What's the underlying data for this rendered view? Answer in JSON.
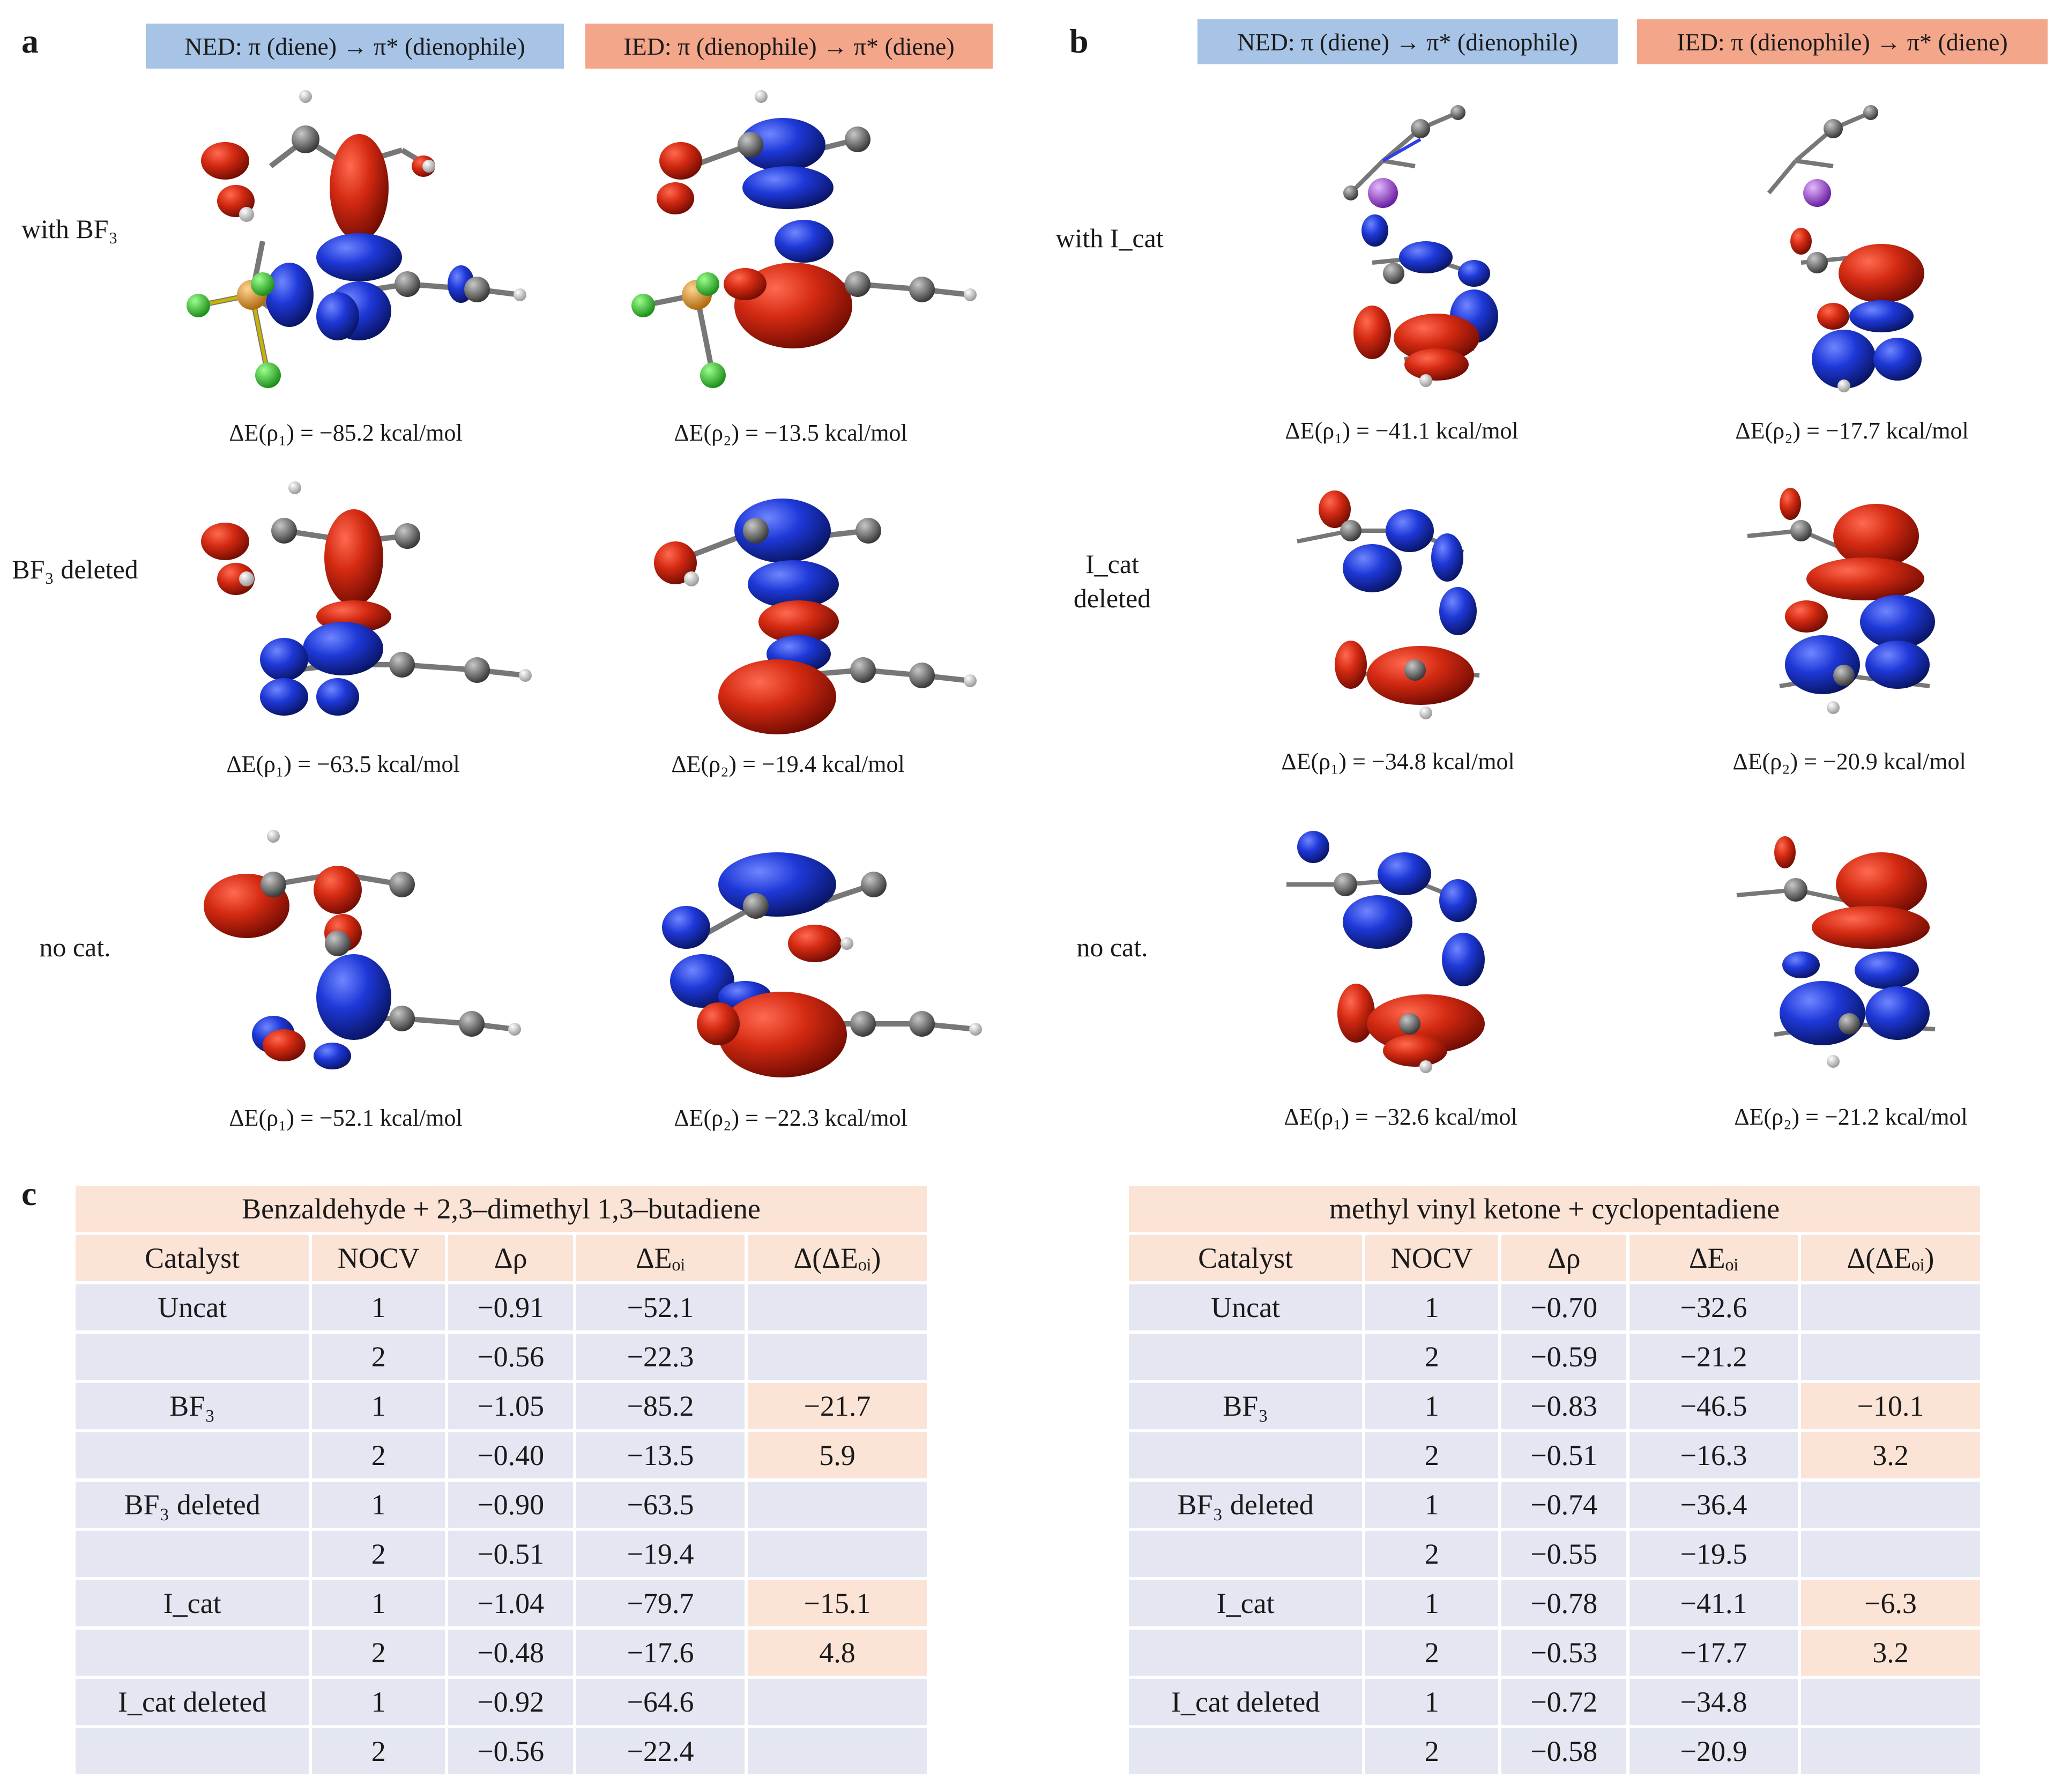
{
  "panels": {
    "a": "a",
    "b": "b",
    "c": "c"
  },
  "headers": {
    "ned": "NED: π (diene) → π* (dienophile)",
    "ied": "IED: π (dienophile) → π* (diene)"
  },
  "panel_a": {
    "rows": [
      "with BF₃",
      "BF₃ deleted",
      "no cat."
    ],
    "energies": [
      [
        "ΔE(ρ₁) = −85.2 kcal/mol",
        "ΔE(ρ₂) = −13.5 kcal/mol"
      ],
      [
        "ΔE(ρ₁) = −63.5 kcal/mol",
        "ΔE(ρ₂) = −19.4 kcal/mol"
      ],
      [
        "ΔE(ρ₁) = −52.1 kcal/mol",
        "ΔE(ρ₂) = −22.3 kcal/mol"
      ]
    ]
  },
  "panel_b": {
    "rows": [
      "with I_cat",
      "I_cat deleted",
      "no cat."
    ],
    "energies": [
      [
        "ΔE(ρ₁) = −41.1 kcal/mol",
        "ΔE(ρ₂) = −17.7 kcal/mol"
      ],
      [
        "ΔE(ρ₁) = −34.8 kcal/mol",
        "ΔE(ρ₂) = −20.9 kcal/mol"
      ],
      [
        "ΔE(ρ₁) = −32.6 kcal/mol",
        "ΔE(ρ₂) = −21.2 kcal/mol"
      ]
    ]
  },
  "tables": [
    {
      "title": "Benzaldehyde + 2,3–dimethyl 1,3–butadiene",
      "columns": [
        "Catalyst",
        "NOCV",
        "Δρ",
        "ΔEₒᵢ",
        "Δ(ΔEₒᵢ)"
      ],
      "rows": [
        [
          "Uncat",
          "1",
          "−0.91",
          "−52.1",
          ""
        ],
        [
          "",
          "2",
          "−0.56",
          "−22.3",
          ""
        ],
        [
          "BF₃",
          "1",
          "−1.05",
          "−85.2",
          "−21.7"
        ],
        [
          "",
          "2",
          "−0.40",
          "−13.5",
          "5.9"
        ],
        [
          "BF₃ deleted",
          "1",
          "−0.90",
          "−63.5",
          ""
        ],
        [
          "",
          "2",
          "−0.51",
          "−19.4",
          ""
        ],
        [
          "I_cat",
          "1",
          "−1.04",
          "−79.7",
          "−15.1"
        ],
        [
          "",
          "2",
          "−0.48",
          "−17.6",
          "4.8"
        ],
        [
          "I_cat deleted",
          "1",
          "−0.92",
          "−64.6",
          ""
        ],
        [
          "",
          "2",
          "−0.56",
          "−22.4",
          ""
        ]
      ]
    },
    {
      "title": "methyl vinyl ketone + cyclopentadiene",
      "columns": [
        "Catalyst",
        "NOCV",
        "Δρ",
        "ΔEₒᵢ",
        "Δ(ΔEₒᵢ)"
      ],
      "rows": [
        [
          "Uncat",
          "1",
          "−0.70",
          "−32.6",
          ""
        ],
        [
          "",
          "2",
          "−0.59",
          "−21.2",
          ""
        ],
        [
          "BF₃",
          "1",
          "−0.83",
          "−46.5",
          "−10.1"
        ],
        [
          "",
          "2",
          "−0.51",
          "−16.3",
          "3.2"
        ],
        [
          "BF₃ deleted",
          "1",
          "−0.74",
          "−36.4",
          ""
        ],
        [
          "",
          "2",
          "−0.55",
          "−19.5",
          ""
        ],
        [
          "I_cat",
          "1",
          "−0.78",
          "−41.1",
          "−6.3"
        ],
        [
          "",
          "2",
          "−0.53",
          "−17.7",
          "3.2"
        ],
        [
          "I_cat deleted",
          "1",
          "−0.72",
          "−34.8",
          ""
        ],
        [
          "",
          "2",
          "−0.58",
          "−20.9",
          ""
        ]
      ]
    }
  ],
  "colors": {
    "blue_header": "#a7c3e6",
    "orange_header": "#f3a68a",
    "lobe_red": "#d42a12",
    "lobe_blue": "#1e38d8",
    "carbon": "#6b6b6b",
    "hydrogen": "#f2f2f2",
    "fluorine": "#3fd43a",
    "boron": "#f0a030",
    "iodine": "#b25ae8",
    "nitrogen": "#3040e0"
  }
}
